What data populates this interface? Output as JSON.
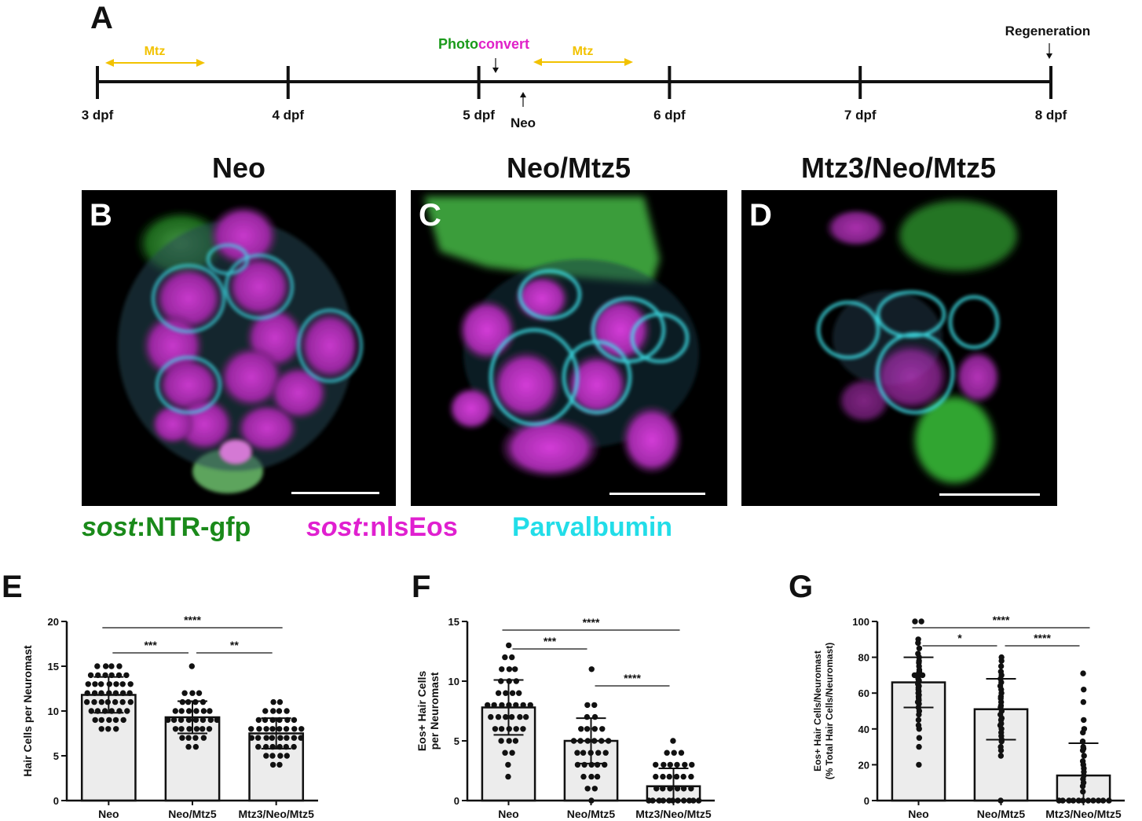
{
  "timeline": {
    "panel": "A",
    "days": [
      "3 dpf",
      "4 dpf",
      "5 dpf",
      "6 dpf",
      "7 dpf",
      "8 dpf"
    ],
    "mtz1": "Mtz",
    "mtz2": "Mtz",
    "photo_a": "Photo",
    "photo_b": "convert",
    "neo": "Neo",
    "regen": "Regeneration",
    "colors": {
      "mtz": "#f2c200",
      "photo": "#1a9a1a",
      "convert": "#e020c8"
    }
  },
  "images": [
    {
      "letter": "B",
      "title": "Neo"
    },
    {
      "letter": "C",
      "title": "Neo/Mtz5"
    },
    {
      "letter": "D",
      "title": "Mtz3/Neo/Mtz5"
    }
  ],
  "legend": {
    "gfp_italic": "sost",
    "gfp_rest": ":NTR-gfp",
    "eos_italic": "sost",
    "eos_rest": ":nlsEos",
    "parv": "Parvalbumin",
    "colors": {
      "gfp": "#1a8a1a",
      "eos": "#e020d0",
      "parv": "#22dde8"
    }
  },
  "chart_data": [
    {
      "panel": "E",
      "type": "bar",
      "categories": [
        "Neo",
        "Neo/Mtz5",
        "Mtz3/Neo/Mtz5"
      ],
      "values": [
        11.8,
        9.3,
        7.5
      ],
      "sd": [
        2.0,
        1.8,
        1.7
      ],
      "ylabel": "Hair Cells per Neuromast",
      "ylim": [
        0,
        20
      ],
      "yticks": [
        "0",
        "5",
        "10",
        "15",
        "20"
      ],
      "significance": [
        {
          "from": 0,
          "to": 1,
          "label": "***"
        },
        {
          "from": 1,
          "to": 2,
          "label": "**"
        },
        {
          "from": 0,
          "to": 2,
          "label": "****"
        }
      ],
      "points": [
        [
          15,
          15,
          15,
          15,
          14,
          14,
          14,
          14,
          14,
          14,
          13,
          13,
          13,
          13,
          13,
          13,
          13,
          12,
          12,
          12,
          12,
          12,
          12,
          12,
          11,
          11,
          11,
          11,
          11,
          11,
          11,
          10,
          10,
          10,
          10,
          10,
          10,
          9,
          9,
          9,
          9,
          9,
          8,
          8,
          8
        ],
        [
          15,
          12,
          12,
          12,
          11,
          11,
          11,
          11,
          10,
          10,
          10,
          10,
          10,
          10,
          9,
          9,
          9,
          9,
          9,
          9,
          9,
          9,
          8,
          8,
          8,
          8,
          8,
          8,
          7,
          7,
          7,
          7,
          6,
          6
        ],
        [
          11,
          11,
          10,
          10,
          10,
          10,
          9,
          9,
          9,
          9,
          9,
          9,
          8,
          8,
          8,
          8,
          8,
          8,
          8,
          8,
          7,
          7,
          7,
          7,
          7,
          7,
          7,
          7,
          6,
          6,
          6,
          6,
          6,
          6,
          5,
          5,
          5,
          5,
          4,
          4
        ]
      ]
    },
    {
      "panel": "F",
      "type": "bar",
      "categories": [
        "Neo",
        "Neo/Mtz5",
        "Mtz3/Neo/Mtz5"
      ],
      "values": [
        7.8,
        5.0,
        1.2
      ],
      "sd": [
        2.3,
        1.9,
        1.5
      ],
      "ylabel": "Eos+ Hair Cells per Neuromast",
      "ylim": [
        0,
        15
      ],
      "yticks": [
        "0",
        "5",
        "10",
        "15"
      ],
      "significance": [
        {
          "from": 0,
          "to": 1,
          "label": "***"
        },
        {
          "from": 1,
          "to": 2,
          "label": "****"
        },
        {
          "from": 0,
          "to": 2,
          "label": "****"
        }
      ],
      "points": [
        [
          13,
          12,
          12,
          11,
          11,
          11,
          10,
          10,
          10,
          9,
          9,
          9,
          9,
          8,
          8,
          8,
          8,
          8,
          8,
          8,
          7,
          7,
          7,
          7,
          7,
          7,
          6,
          6,
          6,
          6,
          6,
          5,
          5,
          5,
          4,
          4,
          3,
          2
        ],
        [
          11,
          8,
          8,
          7,
          7,
          6,
          6,
          6,
          6,
          5,
          5,
          5,
          5,
          5,
          5,
          4,
          4,
          4,
          4,
          4,
          3,
          3,
          3,
          3,
          3,
          2,
          2,
          2,
          1,
          1,
          0
        ],
        [
          5,
          4,
          4,
          4,
          3,
          3,
          3,
          3,
          3,
          3,
          2,
          2,
          2,
          2,
          2,
          2,
          1,
          1,
          1,
          1,
          1,
          1,
          0,
          0,
          0,
          0,
          0,
          0,
          0,
          0,
          0,
          0,
          0
        ]
      ]
    },
    {
      "panel": "G",
      "type": "bar",
      "categories": [
        "Neo",
        "Neo/Mtz5",
        "Mtz3/Neo/Mtz5"
      ],
      "values": [
        66,
        51,
        14
      ],
      "sd": [
        14,
        17,
        18
      ],
      "ylabel": "Eos+ Hair Cells/Neuromast",
      "ylabel2": "(% Total Hair Cells/Neuromast)",
      "ylim": [
        0,
        100
      ],
      "yticks": [
        "0",
        "20",
        "40",
        "60",
        "80",
        "100"
      ],
      "significance": [
        {
          "from": 0,
          "to": 1,
          "label": "*"
        },
        {
          "from": 1,
          "to": 2,
          "label": "****"
        },
        {
          "from": 0,
          "to": 2,
          "label": "****"
        }
      ],
      "points": [
        [
          100,
          100,
          90,
          88,
          85,
          82,
          80,
          78,
          77,
          75,
          73,
          72,
          71,
          70,
          70,
          69,
          68,
          67,
          66,
          65,
          64,
          63,
          62,
          61,
          60,
          59,
          58,
          57,
          56,
          55,
          54,
          52,
          50,
          48,
          45,
          42,
          40,
          35,
          30,
          20
        ],
        [
          80,
          78,
          75,
          72,
          70,
          68,
          66,
          64,
          62,
          60,
          58,
          57,
          55,
          53,
          52,
          50,
          48,
          46,
          45,
          43,
          42,
          40,
          38,
          36,
          34,
          33,
          30,
          28,
          25,
          0
        ],
        [
          71,
          62,
          55,
          45,
          40,
          38,
          33,
          30,
          29,
          28,
          25,
          22,
          20,
          18,
          16,
          14,
          12,
          10,
          8,
          5,
          0,
          0,
          0,
          0,
          0,
          0,
          0,
          0,
          0,
          0,
          0
        ]
      ]
    }
  ]
}
